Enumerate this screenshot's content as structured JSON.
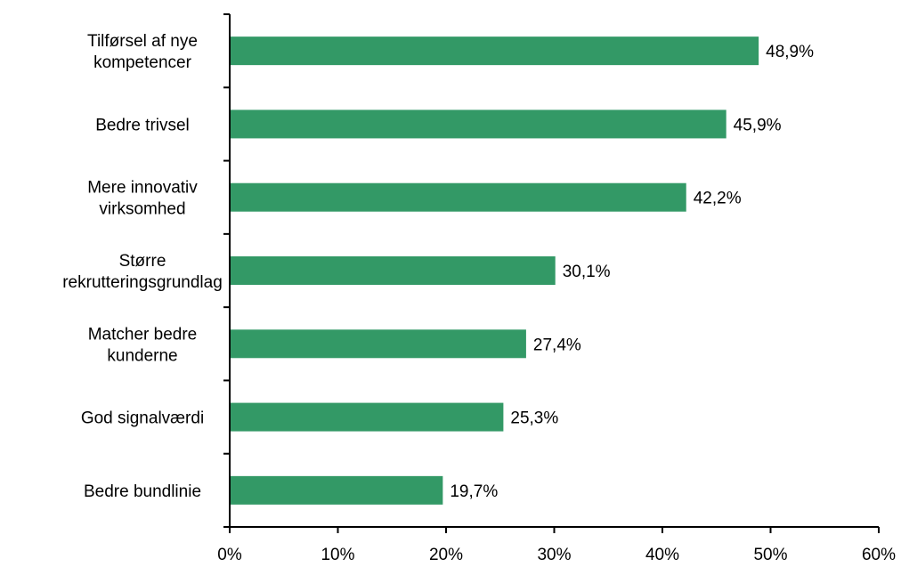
{
  "chart_data": {
    "type": "bar",
    "orientation": "horizontal",
    "categories": [
      [
        "Tilførsel af nye",
        "kompetencer"
      ],
      [
        "Bedre trivsel"
      ],
      [
        "Mere innovativ",
        "virksomhed"
      ],
      [
        "Større",
        "rekrutteringsgrundlag"
      ],
      [
        "Matcher bedre",
        "kunderne"
      ],
      [
        "God signalværdi"
      ],
      [
        "Bedre bundlinie"
      ]
    ],
    "values": [
      48.9,
      45.9,
      42.2,
      30.1,
      27.4,
      25.3,
      19.7
    ],
    "value_labels": [
      "48,9%",
      "45,9%",
      "42,2%",
      "30,1%",
      "27,4%",
      "25,3%",
      "19,7%"
    ],
    "xlim": [
      0,
      60
    ],
    "x_ticks": [
      0,
      10,
      20,
      30,
      40,
      50,
      60
    ],
    "x_tick_labels": [
      "0%",
      "10%",
      "20%",
      "30%",
      "40%",
      "50%",
      "60%"
    ],
    "bar_color": "#339966",
    "grid": false,
    "legend": "none"
  }
}
